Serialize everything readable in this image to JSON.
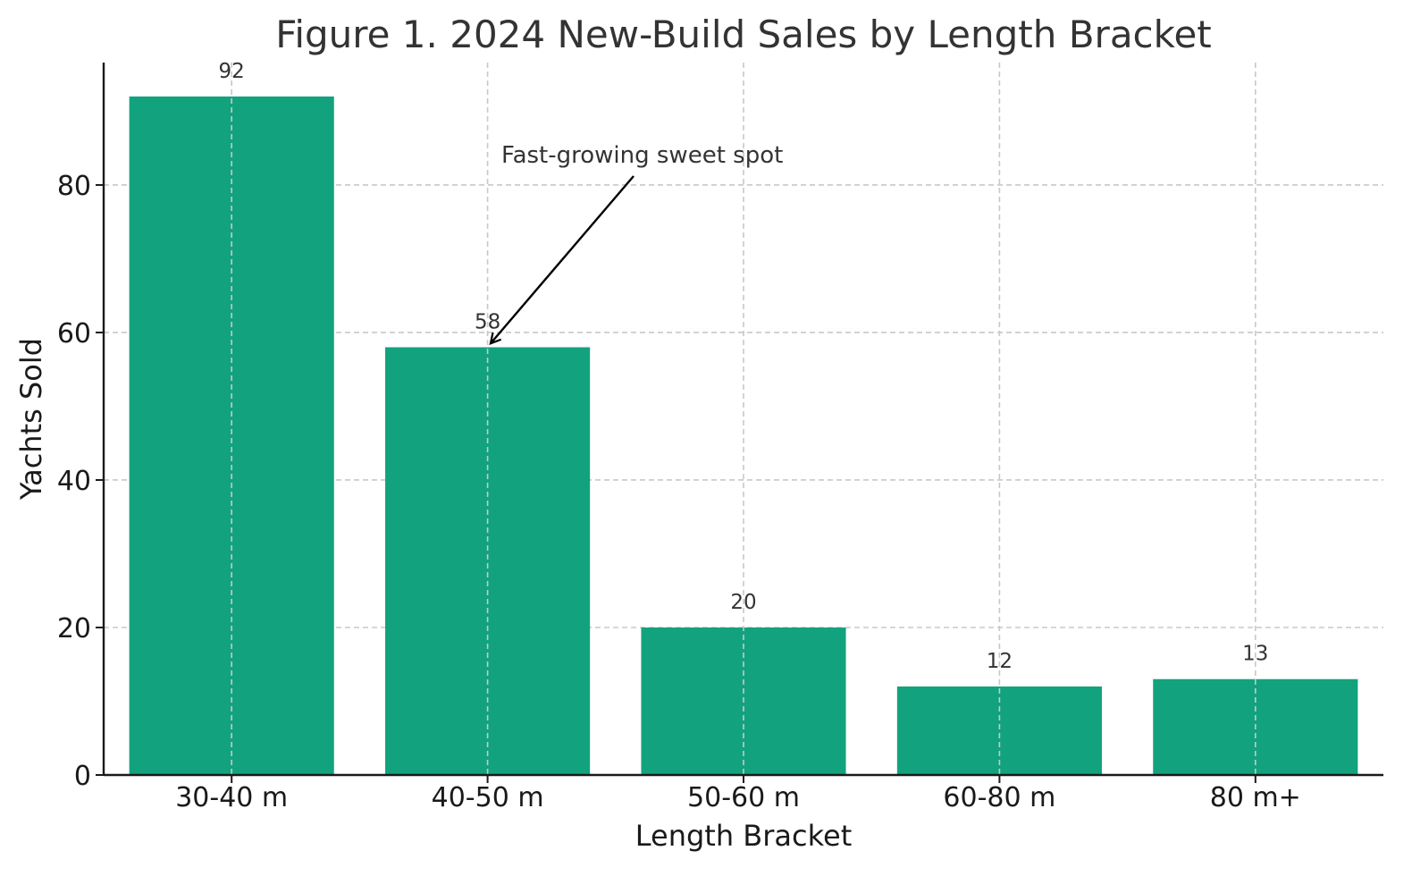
{
  "chart_data": {
    "type": "bar",
    "title": "Figure 1. 2024 New-Build Sales by Length Bracket",
    "xlabel": "Length Bracket",
    "ylabel": "Yachts Sold",
    "categories": [
      "30-40 m",
      "40-50 m",
      "50-60 m",
      "60-80 m",
      "80 m+"
    ],
    "values": [
      92,
      58,
      20,
      12,
      13
    ],
    "value_labels": [
      "92",
      "58",
      "20",
      "12",
      "13"
    ],
    "ylim": [
      0,
      96.6
    ],
    "yticks": [
      0,
      20,
      40,
      60,
      80
    ],
    "ytick_labels": [
      "0",
      "20",
      "40",
      "60",
      "80"
    ],
    "grid": true,
    "grid_style": "dashed",
    "bar_color": "#12a37e",
    "annotation": {
      "text": "Fast-growing sweet spot",
      "target_category": "40-50 m",
      "target_value": 58
    }
  }
}
